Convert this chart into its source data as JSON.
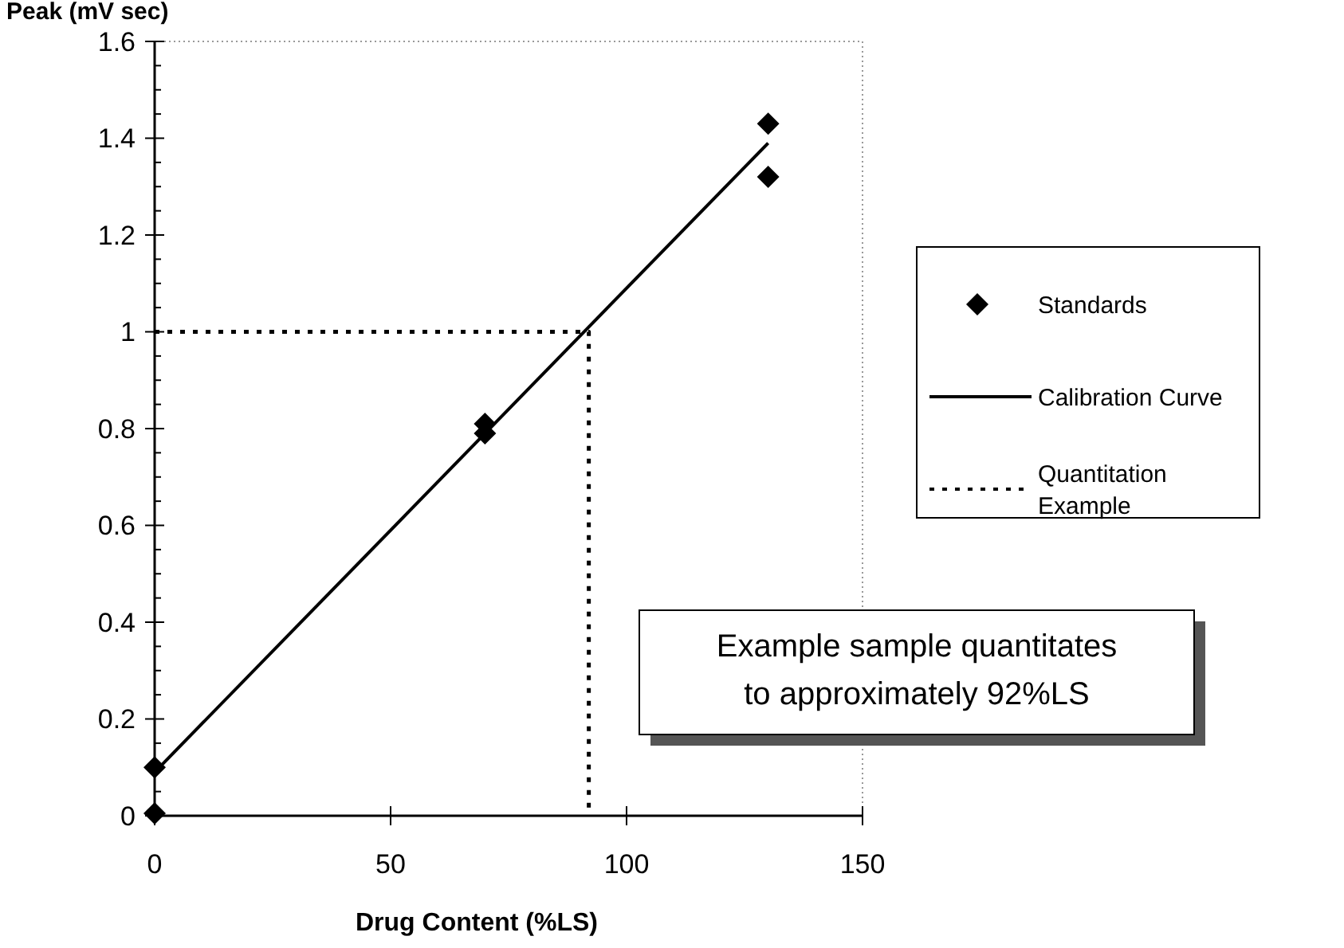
{
  "chart_data": {
    "type": "scatter",
    "xlabel": "Drug Content (%LS)",
    "ylabel": "Peak (mV sec)",
    "xlim": [
      0,
      150
    ],
    "xticks": [
      0,
      50,
      100,
      150
    ],
    "ylim": [
      0,
      1.6
    ],
    "yticks": [
      0,
      0.2,
      0.4,
      0.6,
      0.8,
      1,
      1.2,
      1.4,
      1.6
    ],
    "grid": false,
    "legend": "right",
    "series": [
      {
        "name": "Standards",
        "marker": "diamond",
        "color": "#000000",
        "x": [
          0,
          0,
          70,
          70,
          130,
          130
        ],
        "values": [
          0.005,
          0.1,
          0.79,
          0.81,
          1.43,
          1.32
        ]
      },
      {
        "name": "Calibration Curve",
        "type": "line",
        "marker": "none",
        "line_style": "solid",
        "color": "#000000",
        "x": [
          0,
          130
        ],
        "values": [
          0.09,
          1.39
        ]
      },
      {
        "name": "Quantitation Example",
        "type": "line",
        "marker": "none",
        "line_style": "dotted",
        "color": "#000000",
        "x": [
          0,
          92,
          92
        ],
        "values": [
          1,
          1,
          0
        ]
      }
    ],
    "annotations": [
      "Example sample quantitates to approximately 92%LS"
    ]
  }
}
